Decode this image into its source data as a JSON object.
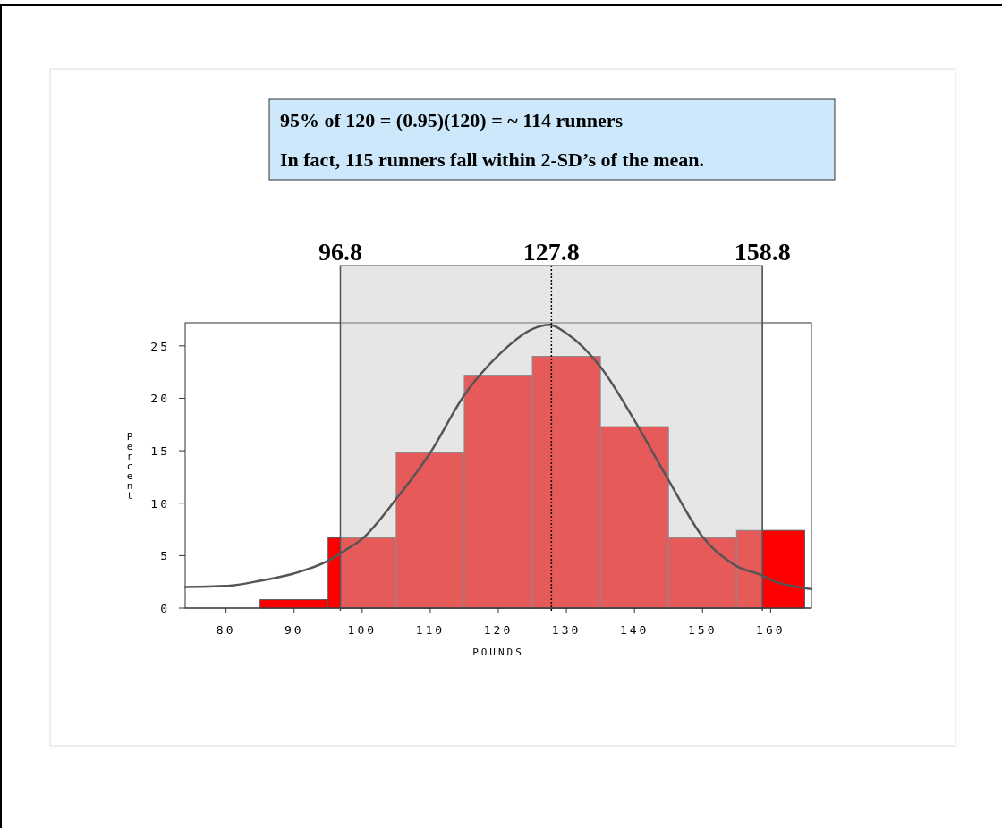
{
  "chart_data": {
    "type": "histogram",
    "xlabel": "POUNDS",
    "ylabel": "Percent",
    "bins": [
      85,
      95,
      105,
      115,
      125,
      135,
      145,
      155,
      165
    ],
    "values": [
      0.8,
      6.7,
      14.8,
      22.2,
      24.0,
      17.3,
      6.7,
      7.4
    ],
    "color": "#ff0000",
    "series": [
      {
        "type": "line",
        "color": "#555555",
        "x": [
          74,
          80,
          85,
          90,
          95,
          97.5,
          100,
          105,
          110,
          115,
          120,
          125,
          127.5,
          130,
          135,
          140,
          145,
          150,
          155,
          158.8,
          160,
          165,
          166
        ],
        "values": [
          2.0,
          2.1,
          2.6,
          3.3,
          4.5,
          5.5,
          6.6,
          10.4,
          14.8,
          20.3,
          24.1,
          26.6,
          27.0,
          26.2,
          23.0,
          17.9,
          12.2,
          6.8,
          4.0,
          3.1,
          2.7,
          1.9,
          1.8
        ]
      }
    ],
    "xlim": [
      74,
      166
    ],
    "ylim": [
      0,
      27.2
    ],
    "xticks": [
      80,
      90,
      100,
      110,
      120,
      130,
      140,
      150,
      160
    ],
    "yticks": [
      0,
      5,
      10,
      15,
      20,
      25
    ],
    "bands": [
      {
        "axis": "x",
        "from": 96.8,
        "to": 158.8,
        "color": "#c8c8c8"
      }
    ],
    "ref_lines": [
      {
        "axis": "x",
        "value": 96.8,
        "label": "96.8",
        "color": "#555555",
        "line_style": "solid"
      },
      {
        "axis": "x",
        "value": 127.8,
        "label": "127.8",
        "color": "#000000",
        "line_style": "dotted"
      },
      {
        "axis": "x",
        "value": 158.8,
        "label": "158.8",
        "color": "#555555",
        "line_style": "solid"
      }
    ],
    "annotations": [
      "95%  of  120 = (0.95)(120) = ~ 114 runners",
      "In fact, 115 runners fall within 2-SD’s of the mean."
    ],
    "grid": false
  }
}
